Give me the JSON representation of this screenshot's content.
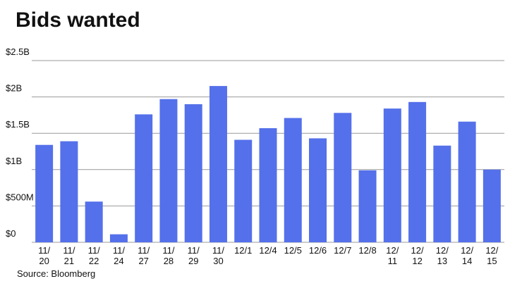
{
  "chart_data": {
    "type": "bar",
    "title": "Bids wanted",
    "source": "Source: Bloomberg",
    "categories": [
      "11/20",
      "11/21",
      "11/22",
      "11/24",
      "11/27",
      "11/28",
      "11/29",
      "11/30",
      "12/1",
      "12/4",
      "12/5",
      "12/6",
      "12/7",
      "12/8",
      "12/11",
      "12/12",
      "12/13",
      "12/14",
      "12/15"
    ],
    "values": [
      1.34,
      1.39,
      0.56,
      0.11,
      1.76,
      1.97,
      1.9,
      2.15,
      1.41,
      1.57,
      1.71,
      1.43,
      1.78,
      0.99,
      1.84,
      1.93,
      1.33,
      1.66,
      1.0
    ],
    "color": "#5470ea",
    "ylim": [
      0,
      2.5
    ],
    "yticks": [
      {
        "value": 0,
        "label": "$0"
      },
      {
        "value": 0.5,
        "label": "$500M"
      },
      {
        "value": 1,
        "label": "$1B"
      },
      {
        "value": 1.5,
        "label": "$1.5B"
      },
      {
        "value": 2,
        "label": "$2B"
      },
      {
        "value": 2.5,
        "label": "$2.5B"
      }
    ],
    "grid": true
  }
}
